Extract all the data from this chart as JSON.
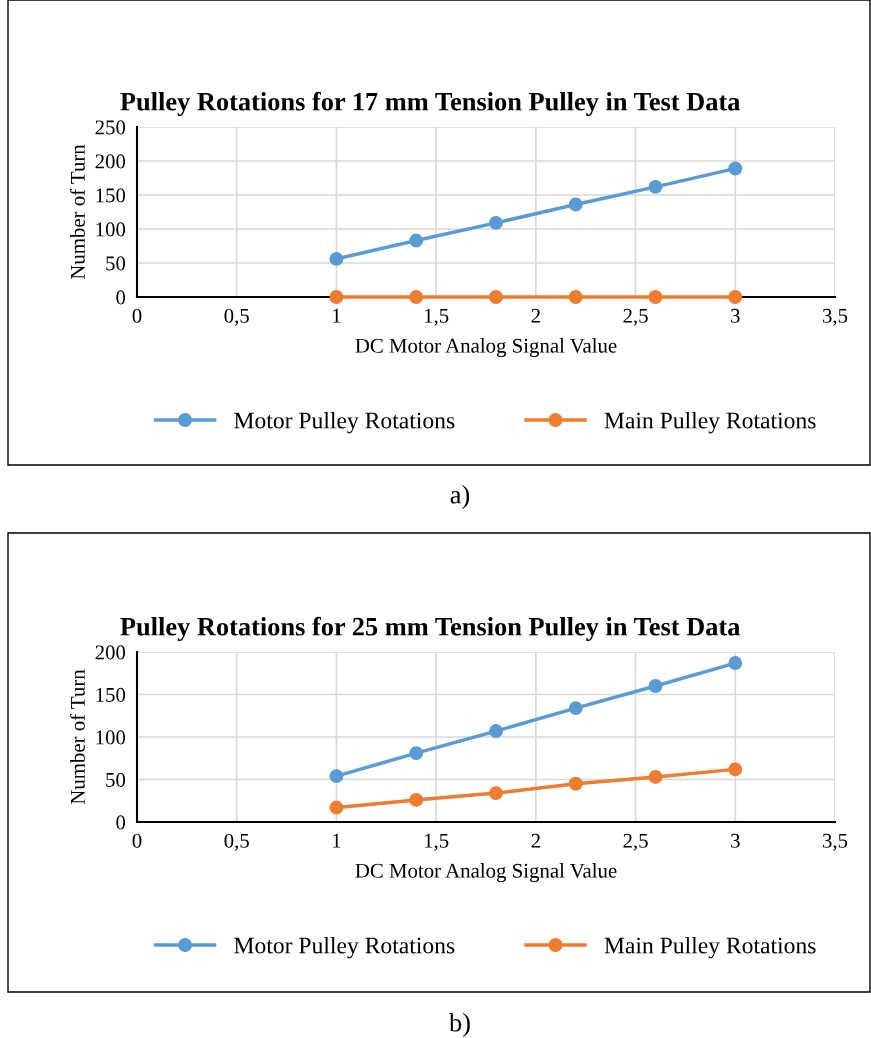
{
  "chart_data": [
    {
      "type": "line",
      "title": "Pulley Rotations for 17 mm Tension Pulley in Test Data",
      "xlabel": "DC Motor Analog Signal Value",
      "ylabel": "Number of Turn",
      "x": [
        1,
        1.4,
        1.8,
        2.2,
        2.6,
        3
      ],
      "series": [
        {
          "name": "Motor Pulley Rotations",
          "color": "#5b9bd5",
          "values": [
            56,
            83,
            109,
            136,
            162,
            189
          ]
        },
        {
          "name": "Main Pulley Rotations",
          "color": "#ed7d31",
          "values": [
            0,
            0,
            0,
            0,
            0,
            0
          ]
        }
      ],
      "xlim": [
        0,
        3.5
      ],
      "xticks": [
        0,
        {
          "value": 0.5,
          "label": "0,5"
        },
        1,
        {
          "value": 1.5,
          "label": "1,5"
        },
        2,
        {
          "value": 2.5,
          "label": "2,5"
        },
        3,
        {
          "value": 3.5,
          "label": "3,5"
        }
      ],
      "ylim": [
        0,
        250
      ],
      "yticks": [
        0,
        50,
        100,
        150,
        200,
        250
      ],
      "grid": true,
      "legend": "bottom",
      "marker": "circle",
      "line_style": "solid",
      "annotations": [
        "a)"
      ]
    },
    {
      "type": "line",
      "title": "Pulley Rotations for 25 mm Tension Pulley in Test Data",
      "xlabel": "DC Motor Analog Signal Value",
      "ylabel": "Number of Turn",
      "x": [
        1,
        1.4,
        1.8,
        2.2,
        2.6,
        3
      ],
      "series": [
        {
          "name": "Motor Pulley Rotations",
          "color": "#5b9bd5",
          "values": [
            54,
            81,
            107,
            134,
            160,
            187
          ]
        },
        {
          "name": "Main Pulley Rotations",
          "color": "#ed7d31",
          "values": [
            17,
            26,
            34,
            45,
            53,
            62
          ]
        }
      ],
      "xlim": [
        0,
        3.5
      ],
      "xticks": [
        0,
        {
          "value": 0.5,
          "label": "0,5"
        },
        1,
        {
          "value": 1.5,
          "label": "1,5"
        },
        2,
        {
          "value": 2.5,
          "label": "2,5"
        },
        3,
        {
          "value": 3.5,
          "label": "3,5"
        }
      ],
      "ylim": [
        0,
        200
      ],
      "yticks": [
        0,
        50,
        100,
        150,
        200
      ],
      "grid": true,
      "legend": "bottom",
      "marker": "circle",
      "line_style": "solid",
      "annotations": [
        "b)"
      ]
    }
  ]
}
